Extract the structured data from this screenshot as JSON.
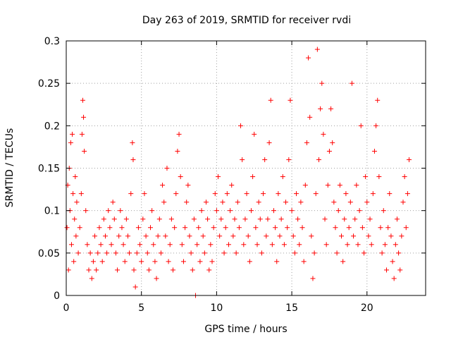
{
  "chart_data": {
    "type": "scatter",
    "title": "Day 263 of 2019, SRMTID for receiver rvdi",
    "xlabel": "GPS time / hours",
    "ylabel": "SRMTID / TECUs",
    "xlim": [
      0,
      23.9
    ],
    "ylim": [
      0,
      0.3
    ],
    "xticks": [
      0,
      5,
      10,
      15,
      20
    ],
    "xtick_labels": [
      "0",
      "5",
      "10",
      "15",
      "20"
    ],
    "yticks": [
      0,
      0.05,
      0.1,
      0.15,
      0.2,
      0.25,
      0.3
    ],
    "ytick_labels": [
      "0",
      "0.05",
      "0.1",
      "0.15",
      "0.2",
      "0.25",
      "0.3"
    ],
    "grid": true,
    "marker": "+",
    "color": "#ff0000",
    "series": [
      {
        "name": "rvdi",
        "points": [
          [
            0.05,
            0.08
          ],
          [
            0.1,
            0.13
          ],
          [
            0.15,
            0.03
          ],
          [
            0.2,
            0.15
          ],
          [
            0.25,
            0.1
          ],
          [
            0.3,
            0.18
          ],
          [
            0.35,
            0.06
          ],
          [
            0.4,
            0.19
          ],
          [
            0.45,
            0.12
          ],
          [
            0.5,
            0.04
          ],
          [
            0.55,
            0.09
          ],
          [
            0.6,
            0.14
          ],
          [
            0.65,
            0.07
          ],
          [
            0.7,
            0.11
          ],
          [
            0.8,
            0.05
          ],
          [
            0.9,
            0.08
          ],
          [
            1.0,
            0.12
          ],
          [
            1.05,
            0.19
          ],
          [
            1.1,
            0.23
          ],
          [
            1.15,
            0.21
          ],
          [
            1.2,
            0.17
          ],
          [
            1.3,
            0.1
          ],
          [
            1.4,
            0.06
          ],
          [
            1.5,
            0.03
          ],
          [
            1.6,
            0.05
          ],
          [
            1.7,
            0.02
          ],
          [
            1.8,
            0.04
          ],
          [
            1.9,
            0.07
          ],
          [
            2.0,
            0.03
          ],
          [
            2.1,
            0.05
          ],
          [
            2.2,
            0.08
          ],
          [
            2.3,
            0.06
          ],
          [
            2.4,
            0.04
          ],
          [
            2.5,
            0.09
          ],
          [
            2.6,
            0.07
          ],
          [
            2.7,
            0.05
          ],
          [
            2.8,
            0.1
          ],
          [
            2.9,
            0.08
          ],
          [
            3.0,
            0.06
          ],
          [
            3.1,
            0.11
          ],
          [
            3.2,
            0.09
          ],
          [
            3.3,
            0.05
          ],
          [
            3.4,
            0.03
          ],
          [
            3.5,
            0.07
          ],
          [
            3.6,
            0.1
          ],
          [
            3.7,
            0.08
          ],
          [
            3.8,
            0.06
          ],
          [
            3.9,
            0.04
          ],
          [
            4.0,
            0.09
          ],
          [
            4.1,
            0.07
          ],
          [
            4.2,
            0.05
          ],
          [
            4.3,
            0.12
          ],
          [
            4.4,
            0.18
          ],
          [
            4.45,
            0.16
          ],
          [
            4.5,
            0.03
          ],
          [
            4.6,
            0.01
          ],
          [
            4.7,
            0.05
          ],
          [
            4.8,
            0.08
          ],
          [
            4.9,
            0.06
          ],
          [
            5.0,
            0.04
          ],
          [
            5.1,
            0.09
          ],
          [
            5.2,
            0.12
          ],
          [
            5.3,
            0.07
          ],
          [
            5.4,
            0.05
          ],
          [
            5.5,
            0.03
          ],
          [
            5.6,
            0.08
          ],
          [
            5.7,
            0.1
          ],
          [
            5.8,
            0.06
          ],
          [
            5.9,
            0.04
          ],
          [
            6.0,
            0.02
          ],
          [
            6.1,
            0.07
          ],
          [
            6.2,
            0.09
          ],
          [
            6.3,
            0.05
          ],
          [
            6.4,
            0.13
          ],
          [
            6.5,
            0.11
          ],
          [
            6.6,
            0.07
          ],
          [
            6.7,
            0.15
          ],
          [
            6.8,
            0.04
          ],
          [
            6.9,
            0.06
          ],
          [
            7.0,
            0.09
          ],
          [
            7.1,
            0.03
          ],
          [
            7.2,
            0.08
          ],
          [
            7.3,
            0.12
          ],
          [
            7.4,
            0.17
          ],
          [
            7.5,
            0.19
          ],
          [
            7.6,
            0.14
          ],
          [
            7.7,
            0.06
          ],
          [
            7.8,
            0.04
          ],
          [
            7.9,
            0.08
          ],
          [
            8.0,
            0.11
          ],
          [
            8.1,
            0.13
          ],
          [
            8.2,
            0.07
          ],
          [
            8.3,
            0.05
          ],
          [
            8.4,
            0.03
          ],
          [
            8.5,
            0.09
          ],
          [
            8.6,
            0.0
          ],
          [
            8.7,
            0.06
          ],
          [
            8.8,
            0.08
          ],
          [
            8.9,
            0.04
          ],
          [
            9.0,
            0.1
          ],
          [
            9.1,
            0.07
          ],
          [
            9.2,
            0.05
          ],
          [
            9.3,
            0.11
          ],
          [
            9.4,
            0.09
          ],
          [
            9.5,
            0.03
          ],
          [
            9.6,
            0.06
          ],
          [
            9.7,
            0.04
          ],
          [
            9.8,
            0.08
          ],
          [
            9.9,
            0.12
          ],
          [
            10.0,
            0.1
          ],
          [
            10.1,
            0.14
          ],
          [
            10.2,
            0.07
          ],
          [
            10.3,
            0.09
          ],
          [
            10.4,
            0.11
          ],
          [
            10.5,
            0.05
          ],
          [
            10.6,
            0.08
          ],
          [
            10.7,
            0.12
          ],
          [
            10.8,
            0.06
          ],
          [
            10.9,
            0.1
          ],
          [
            11.0,
            0.13
          ],
          [
            11.1,
            0.07
          ],
          [
            11.2,
            0.09
          ],
          [
            11.3,
            0.05
          ],
          [
            11.4,
            0.11
          ],
          [
            11.5,
            0.08
          ],
          [
            11.6,
            0.2
          ],
          [
            11.7,
            0.16
          ],
          [
            11.8,
            0.06
          ],
          [
            11.9,
            0.09
          ],
          [
            12.0,
            0.12
          ],
          [
            12.1,
            0.07
          ],
          [
            12.2,
            0.04
          ],
          [
            12.3,
            0.1
          ],
          [
            12.4,
            0.14
          ],
          [
            12.5,
            0.19
          ],
          [
            12.6,
            0.08
          ],
          [
            12.7,
            0.06
          ],
          [
            12.8,
            0.11
          ],
          [
            12.9,
            0.09
          ],
          [
            13.0,
            0.05
          ],
          [
            13.1,
            0.12
          ],
          [
            13.2,
            0.16
          ],
          [
            13.3,
            0.07
          ],
          [
            13.4,
            0.09
          ],
          [
            13.5,
            0.18
          ],
          [
            13.6,
            0.23
          ],
          [
            13.7,
            0.06
          ],
          [
            13.8,
            0.1
          ],
          [
            13.9,
            0.08
          ],
          [
            14.0,
            0.04
          ],
          [
            14.1,
            0.12
          ],
          [
            14.2,
            0.07
          ],
          [
            14.3,
            0.09
          ],
          [
            14.4,
            0.14
          ],
          [
            14.5,
            0.06
          ],
          [
            14.6,
            0.11
          ],
          [
            14.7,
            0.08
          ],
          [
            14.8,
            0.16
          ],
          [
            14.9,
            0.23
          ],
          [
            15.0,
            0.1
          ],
          [
            15.1,
            0.07
          ],
          [
            15.2,
            0.05
          ],
          [
            15.3,
            0.12
          ],
          [
            15.4,
            0.09
          ],
          [
            15.5,
            0.06
          ],
          [
            15.6,
            0.11
          ],
          [
            15.7,
            0.08
          ],
          [
            15.8,
            0.04
          ],
          [
            15.9,
            0.13
          ],
          [
            16.0,
            0.18
          ],
          [
            16.1,
            0.28
          ],
          [
            16.2,
            0.21
          ],
          [
            16.3,
            0.07
          ],
          [
            16.4,
            0.02
          ],
          [
            16.5,
            0.05
          ],
          [
            16.6,
            0.12
          ],
          [
            16.7,
            0.29
          ],
          [
            16.8,
            0.16
          ],
          [
            16.9,
            0.22
          ],
          [
            17.0,
            0.25
          ],
          [
            17.1,
            0.19
          ],
          [
            17.2,
            0.09
          ],
          [
            17.3,
            0.06
          ],
          [
            17.4,
            0.13
          ],
          [
            17.5,
            0.17
          ],
          [
            17.6,
            0.22
          ],
          [
            17.7,
            0.18
          ],
          [
            17.8,
            0.11
          ],
          [
            17.9,
            0.08
          ],
          [
            18.0,
            0.05
          ],
          [
            18.1,
            0.1
          ],
          [
            18.2,
            0.13
          ],
          [
            18.3,
            0.07
          ],
          [
            18.4,
            0.04
          ],
          [
            18.5,
            0.09
          ],
          [
            18.6,
            0.12
          ],
          [
            18.7,
            0.06
          ],
          [
            18.8,
            0.08
          ],
          [
            18.9,
            0.11
          ],
          [
            19.0,
            0.25
          ],
          [
            19.1,
            0.07
          ],
          [
            19.2,
            0.09
          ],
          [
            19.3,
            0.13
          ],
          [
            19.4,
            0.06
          ],
          [
            19.5,
            0.1
          ],
          [
            19.6,
            0.2
          ],
          [
            19.7,
            0.08
          ],
          [
            19.8,
            0.05
          ],
          [
            19.9,
            0.14
          ],
          [
            20.0,
            0.11
          ],
          [
            20.1,
            0.07
          ],
          [
            20.2,
            0.09
          ],
          [
            20.3,
            0.06
          ],
          [
            20.4,
            0.12
          ],
          [
            20.5,
            0.17
          ],
          [
            20.6,
            0.2
          ],
          [
            20.7,
            0.23
          ],
          [
            20.8,
            0.14
          ],
          [
            20.9,
            0.08
          ],
          [
            21.0,
            0.05
          ],
          [
            21.1,
            0.1
          ],
          [
            21.2,
            0.06
          ],
          [
            21.3,
            0.03
          ],
          [
            21.4,
            0.08
          ],
          [
            21.5,
            0.12
          ],
          [
            21.6,
            0.07
          ],
          [
            21.7,
            0.04
          ],
          [
            21.8,
            0.02
          ],
          [
            21.9,
            0.06
          ],
          [
            22.0,
            0.09
          ],
          [
            22.1,
            0.05
          ],
          [
            22.2,
            0.03
          ],
          [
            22.3,
            0.07
          ],
          [
            22.4,
            0.11
          ],
          [
            22.5,
            0.14
          ],
          [
            22.6,
            0.08
          ],
          [
            22.7,
            0.12
          ],
          [
            22.8,
            0.16
          ]
        ]
      }
    ]
  }
}
